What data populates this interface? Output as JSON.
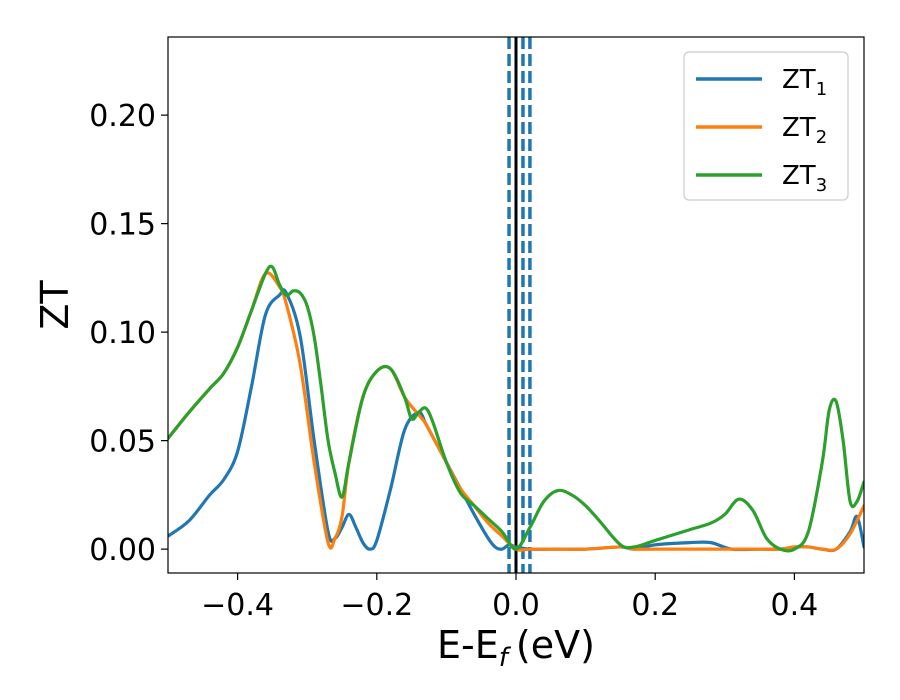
{
  "chart_data": {
    "type": "line",
    "xlabel": "E-E",
    "xlabel_sub": "f",
    "xlabel_unit": "(eV)",
    "ylabel": "ZT",
    "xlim": [
      -0.5,
      0.5
    ],
    "ylim": [
      -0.011,
      0.236
    ],
    "xticks": [
      -0.4,
      -0.2,
      0.0,
      0.2,
      0.4
    ],
    "xtick_labels": [
      "−0.4",
      "−0.2",
      "0.0",
      "0.2",
      "0.4"
    ],
    "yticks": [
      0.0,
      0.05,
      0.1,
      0.15,
      0.2
    ],
    "ytick_labels": [
      "0.00",
      "0.05",
      "0.10",
      "0.15",
      "0.20"
    ],
    "grid": false,
    "legend": "top-right",
    "vlines": [
      {
        "x": 0.0,
        "color": "#000000",
        "style": "solid"
      },
      {
        "x": -0.01,
        "color": "#1f77b4",
        "style": "dashed"
      },
      {
        "x": 0.01,
        "color": "#1f77b4",
        "style": "dashed"
      },
      {
        "x": 0.02,
        "color": "#1f77b4",
        "style": "dashed"
      }
    ],
    "series": [
      {
        "name": "ZT",
        "name_sub": "1",
        "color": "#1f77b4",
        "x": [
          -0.5,
          -0.47,
          -0.44,
          -0.42,
          -0.4,
          -0.38,
          -0.36,
          -0.34,
          -0.33,
          -0.31,
          -0.29,
          -0.27,
          -0.26,
          -0.25,
          -0.24,
          -0.23,
          -0.22,
          -0.21,
          -0.2,
          -0.18,
          -0.16,
          -0.14,
          -0.13,
          -0.12,
          -0.1,
          -0.08,
          -0.06,
          -0.04,
          -0.03,
          -0.02,
          -0.01,
          0.0,
          0.02,
          0.05,
          0.1,
          0.15,
          0.17,
          0.2,
          0.25,
          0.28,
          0.31,
          0.35,
          0.38,
          0.4,
          0.42,
          0.44,
          0.46,
          0.48,
          0.49,
          0.5
        ],
        "values": [
          0.006,
          0.013,
          0.025,
          0.032,
          0.045,
          0.075,
          0.108,
          0.117,
          0.118,
          0.098,
          0.05,
          0.008,
          0.005,
          0.01,
          0.016,
          0.01,
          0.003,
          0.0,
          0.004,
          0.028,
          0.055,
          0.063,
          0.058,
          0.052,
          0.04,
          0.028,
          0.016,
          0.005,
          0.001,
          0.0,
          0.002,
          0.001,
          0.0,
          0.0,
          0.0,
          0.001,
          0.0,
          0.002,
          0.003,
          0.003,
          0.0,
          0.0,
          0.0,
          0.001,
          0.001,
          0.0,
          0.0,
          0.008,
          0.015,
          0.001
        ]
      },
      {
        "name": "ZT",
        "name_sub": "2",
        "color": "#ff7f0e",
        "x": [
          -0.5,
          -0.47,
          -0.44,
          -0.42,
          -0.4,
          -0.38,
          -0.36,
          -0.34,
          -0.33,
          -0.31,
          -0.29,
          -0.27,
          -0.26,
          -0.25,
          -0.24,
          -0.22,
          -0.2,
          -0.18,
          -0.16,
          -0.14,
          -0.13,
          -0.12,
          -0.1,
          -0.08,
          -0.06,
          -0.04,
          -0.02,
          0.0,
          0.02,
          0.05,
          0.1,
          0.15,
          0.17,
          0.2,
          0.25,
          0.3,
          0.35,
          0.38,
          0.4,
          0.42,
          0.44,
          0.46,
          0.48,
          0.5
        ],
        "values": [
          0.051,
          0.063,
          0.074,
          0.081,
          0.093,
          0.11,
          0.127,
          0.121,
          0.113,
          0.085,
          0.04,
          0.003,
          0.005,
          0.015,
          0.04,
          0.07,
          0.082,
          0.083,
          0.07,
          0.062,
          0.058,
          0.052,
          0.04,
          0.028,
          0.02,
          0.012,
          0.006,
          0.0,
          0.0,
          0.0,
          0.0,
          0.001,
          0.0,
          0.0,
          0.0,
          0.0,
          0.0,
          0.0,
          0.001,
          0.001,
          0.0,
          0.0,
          0.007,
          0.02
        ]
      },
      {
        "name": "ZT",
        "name_sub": "3",
        "color": "#2ca02c",
        "x": [
          -0.5,
          -0.47,
          -0.44,
          -0.42,
          -0.4,
          -0.38,
          -0.36,
          -0.35,
          -0.34,
          -0.33,
          -0.32,
          -0.31,
          -0.3,
          -0.29,
          -0.28,
          -0.27,
          -0.26,
          -0.25,
          -0.24,
          -0.22,
          -0.2,
          -0.18,
          -0.16,
          -0.15,
          -0.14,
          -0.13,
          -0.12,
          -0.1,
          -0.08,
          -0.06,
          -0.04,
          -0.02,
          0.0,
          0.02,
          0.04,
          0.06,
          0.08,
          0.1,
          0.12,
          0.15,
          0.17,
          0.2,
          0.25,
          0.28,
          0.3,
          0.32,
          0.34,
          0.36,
          0.38,
          0.4,
          0.42,
          0.44,
          0.45,
          0.46,
          0.47,
          0.48,
          0.49,
          0.5
        ],
        "values": [
          0.051,
          0.063,
          0.074,
          0.081,
          0.093,
          0.11,
          0.127,
          0.13,
          0.122,
          0.117,
          0.119,
          0.118,
          0.112,
          0.098,
          0.075,
          0.05,
          0.035,
          0.024,
          0.04,
          0.07,
          0.082,
          0.083,
          0.07,
          0.06,
          0.063,
          0.065,
          0.059,
          0.04,
          0.026,
          0.02,
          0.014,
          0.008,
          0.0,
          0.01,
          0.022,
          0.027,
          0.025,
          0.02,
          0.013,
          0.002,
          0.001,
          0.004,
          0.009,
          0.012,
          0.016,
          0.023,
          0.018,
          0.005,
          0.0,
          0.0,
          0.008,
          0.04,
          0.064,
          0.068,
          0.05,
          0.022,
          0.022,
          0.031
        ]
      }
    ]
  }
}
